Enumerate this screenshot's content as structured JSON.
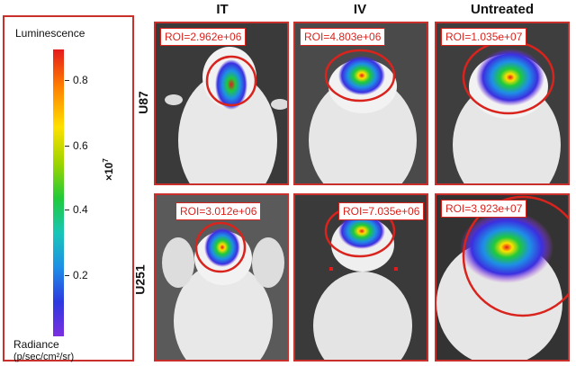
{
  "legend": {
    "title": "Luminescence",
    "ticks": [
      "0.8",
      "0.6",
      "0.4",
      "0.2"
    ],
    "multiplier_base": "×10",
    "multiplier_exp": "7",
    "radiance_title": "Radiance",
    "radiance_unit": "(p/sec/cm²/sr)",
    "scale_colors": [
      "#e41a1c",
      "#ff7f00",
      "#ffe000",
      "#1fca3a",
      "#18c6b8",
      "#1e8fe6",
      "#2d39e0",
      "#7b2fe0"
    ]
  },
  "columns": [
    "IT",
    "IV",
    "Untreated"
  ],
  "rows": [
    "U87",
    "U251"
  ],
  "panels": {
    "u87_it": "ROI=2.962e+06",
    "u87_iv": "ROI=4.803e+06",
    "u87_untreated": "ROI=1.035e+07",
    "u251_it": "ROI=3.012e+06",
    "u251_iv": "ROI=7.035e+06",
    "u251_untreated": "ROI=3.923e+07"
  },
  "colors": {
    "border": "#c9302c",
    "roi_circle": "#d9231d",
    "roi_text": "#d9231d"
  }
}
